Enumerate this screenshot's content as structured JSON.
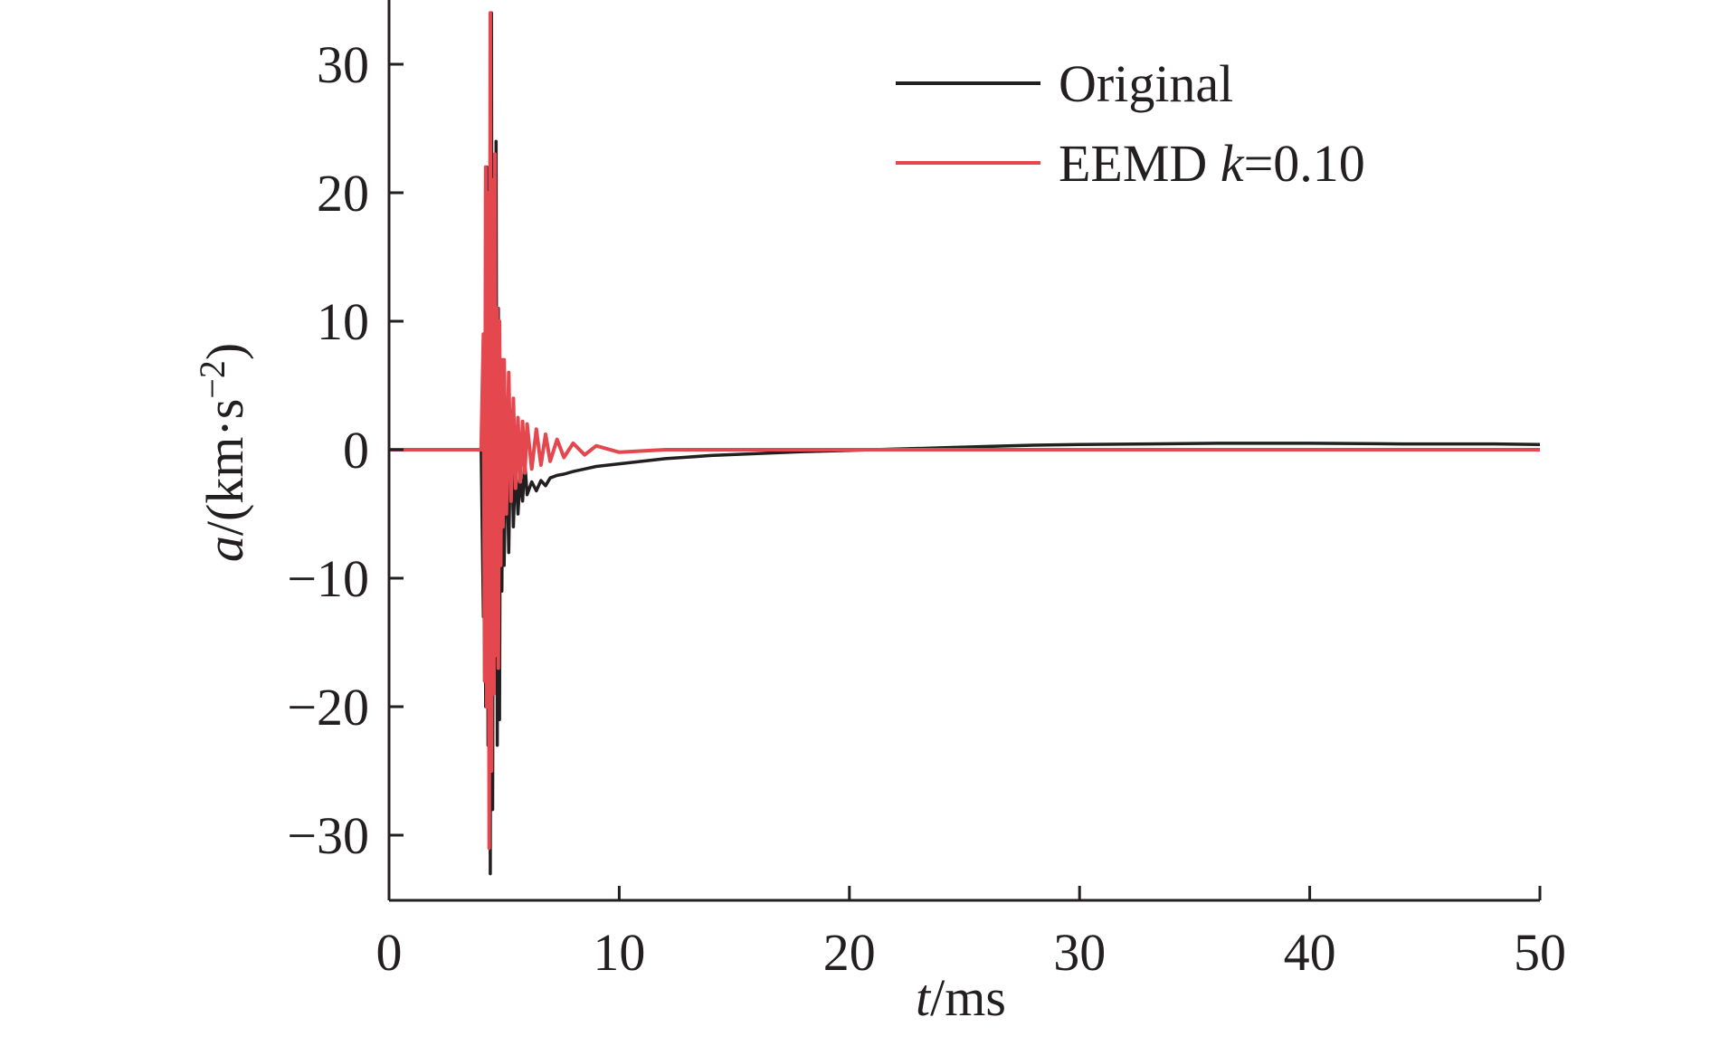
{
  "chart_data": {
    "type": "line",
    "title": "",
    "xlabel": {
      "italic": "t",
      "rest": "/ms"
    },
    "ylabel": {
      "italic": "a",
      "rest": "/(km·s",
      "sup": "−2",
      "close": ")"
    },
    "xlim": [
      0,
      50
    ],
    "ylim": [
      -35,
      35
    ],
    "xticks": [
      0,
      10,
      20,
      30,
      40,
      50
    ],
    "yticks": [
      -30,
      -20,
      -10,
      0,
      10,
      20,
      30
    ],
    "xtick_labels": [
      "0",
      "10",
      "20",
      "30",
      "40",
      "50"
    ],
    "ytick_labels": [
      "−30",
      "−20",
      "−10",
      "0",
      "10",
      "20",
      "30"
    ],
    "grid": false,
    "legend_position": "top-right",
    "series": [
      {
        "name": "Original",
        "legend_parts": [
          "Original"
        ],
        "color": "#231f20",
        "x": [
          0,
          4.0,
          4.1,
          4.15,
          4.2,
          4.25,
          4.3,
          4.35,
          4.4,
          4.45,
          4.5,
          4.55,
          4.6,
          4.65,
          4.7,
          4.75,
          4.8,
          4.85,
          4.9,
          4.95,
          5.0,
          5.1,
          5.2,
          5.3,
          5.4,
          5.5,
          5.6,
          5.7,
          5.8,
          5.9,
          6.0,
          6.2,
          6.4,
          6.6,
          6.8,
          7.0,
          7.3,
          7.6,
          8.0,
          8.5,
          9.0,
          10,
          11,
          12,
          14,
          16,
          18,
          20,
          22,
          24,
          26,
          28,
          30,
          33,
          36,
          40,
          44,
          48,
          50
        ],
        "y": [
          0,
          0,
          -13,
          8,
          -20,
          22,
          -23,
          18,
          -33,
          34,
          -28,
          20,
          -17,
          24,
          -23,
          11,
          -21,
          7,
          -11,
          4,
          -9,
          2,
          -8,
          3,
          -6,
          -1,
          -5,
          -2,
          -4,
          -1,
          -3.5,
          -2.5,
          -3.2,
          -2.4,
          -2.8,
          -2.2,
          -2.0,
          -1.9,
          -1.7,
          -1.5,
          -1.3,
          -1.1,
          -0.9,
          -0.7,
          -0.45,
          -0.3,
          -0.15,
          -0.05,
          0.05,
          0.15,
          0.25,
          0.35,
          0.4,
          0.45,
          0.5,
          0.5,
          0.45,
          0.45,
          0.4
        ]
      },
      {
        "name": "EEMD k=0.10",
        "legend_parts": [
          "EEMD  ",
          "k",
          "=0.10"
        ],
        "color": "#e5474f",
        "x": [
          0,
          4.0,
          4.1,
          4.15,
          4.2,
          4.25,
          4.3,
          4.35,
          4.4,
          4.45,
          4.5,
          4.55,
          4.6,
          4.65,
          4.7,
          4.75,
          4.8,
          4.85,
          4.9,
          4.95,
          5.0,
          5.1,
          5.2,
          5.3,
          5.4,
          5.5,
          5.6,
          5.7,
          5.8,
          5.9,
          6.0,
          6.2,
          6.4,
          6.6,
          6.8,
          7.0,
          7.3,
          7.6,
          8.0,
          8.5,
          9.0,
          10,
          12,
          50
        ],
        "y": [
          0,
          0,
          9,
          -18,
          22,
          -20,
          20,
          -31,
          34,
          -25,
          21,
          -19,
          23,
          -16,
          11,
          -17,
          10,
          -9,
          7,
          -6,
          7,
          -5,
          6,
          -4,
          4,
          -3,
          2.5,
          -2.5,
          2.2,
          -1.8,
          2,
          -1.5,
          1.6,
          -1.2,
          1.2,
          -0.9,
          0.8,
          -0.6,
          0.5,
          -0.4,
          0.3,
          -0.2,
          0,
          0
        ]
      }
    ]
  }
}
